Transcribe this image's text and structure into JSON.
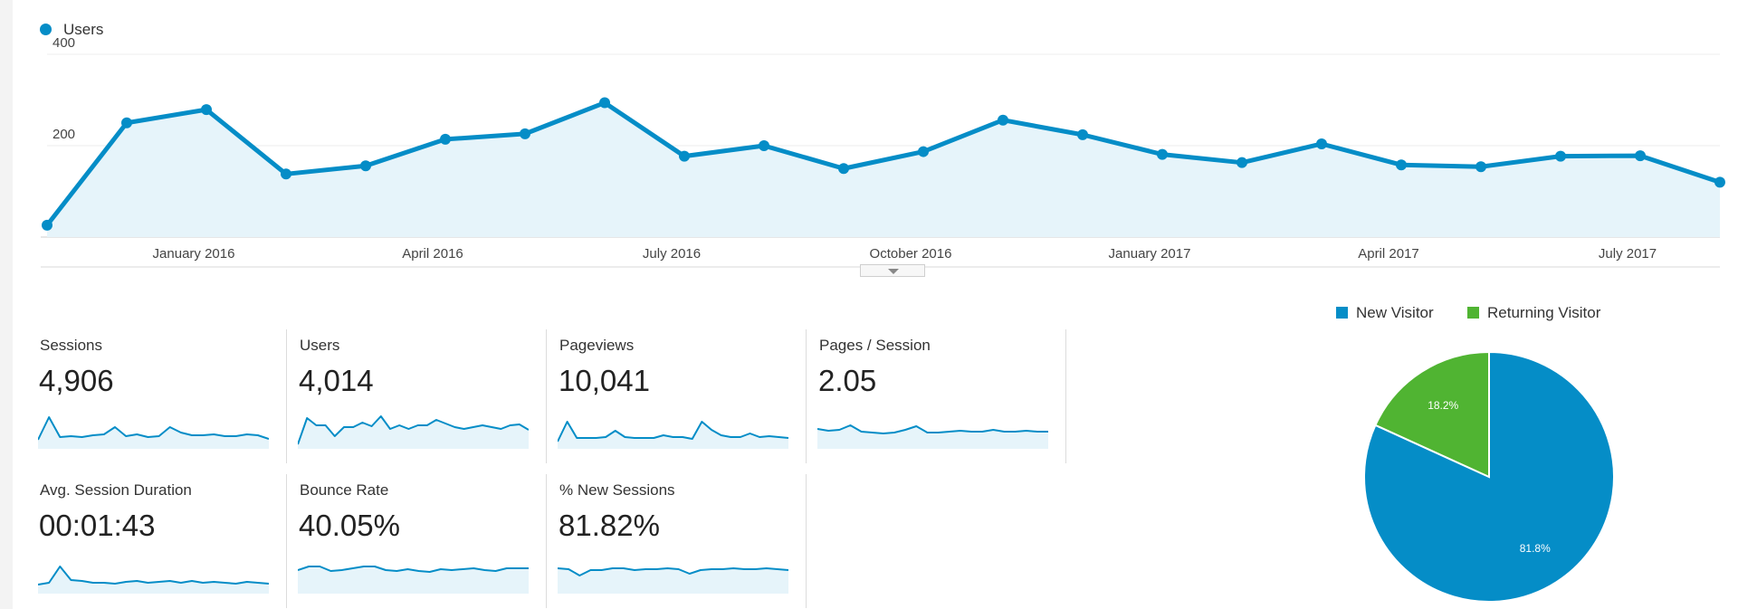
{
  "main_chart": {
    "legend": "Users",
    "color": "#058dc7"
  },
  "chart_data": [
    {
      "type": "area",
      "series": [
        {
          "name": "Users",
          "x": [
            "2015-11",
            "2015-12",
            "2016-01",
            "2016-02",
            "2016-03",
            "2016-04",
            "2016-05",
            "2016-06",
            "2016-07",
            "2016-08",
            "2016-09",
            "2016-10",
            "2016-11",
            "2016-12",
            "2017-01",
            "2017-02",
            "2017-03",
            "2017-04",
            "2017-05",
            "2017-06",
            "2017-07",
            "2017-08"
          ],
          "values": [
            26,
            250,
            279,
            138,
            156,
            214,
            226,
            294,
            177,
            200,
            150,
            187,
            256,
            224,
            181,
            163,
            204,
            158,
            154,
            177,
            178,
            120
          ]
        }
      ],
      "ylim": [
        0,
        400
      ],
      "yticks": [
        "400",
        "200"
      ],
      "xtick_labels": [
        "January 2016",
        "April 2016",
        "July 2016",
        "October 2016",
        "January 2017",
        "April 2017",
        "July 2017"
      ],
      "grid": true
    },
    {
      "type": "pie",
      "slices": [
        {
          "label": "New Visitor",
          "value": 81.8,
          "value_label": "81.8%",
          "color": "#058dc7"
        },
        {
          "label": "Returning Visitor",
          "value": 18.2,
          "value_label": "18.2%",
          "color": "#50b432"
        }
      ],
      "legend": "top"
    }
  ],
  "metrics": [
    {
      "label": "Sessions",
      "value": "4,906",
      "spark": [
        10,
        35,
        13,
        14,
        13,
        15,
        16,
        24,
        14,
        16,
        13,
        14,
        24,
        18,
        15,
        15,
        16,
        14,
        14,
        16,
        15,
        11
      ]
    },
    {
      "label": "Users",
      "value": "4,014",
      "spark": [
        5,
        34,
        26,
        26,
        14,
        24,
        24,
        29,
        25,
        36,
        22,
        26,
        22,
        26,
        26,
        32,
        28,
        24,
        22,
        24,
        26,
        24,
        22,
        26,
        27,
        21
      ]
    },
    {
      "label": "Pageviews",
      "value": "10,041",
      "spark": [
        8,
        30,
        12,
        12,
        12,
        13,
        20,
        13,
        12,
        12,
        12,
        15,
        13,
        13,
        11,
        30,
        21,
        15,
        13,
        13,
        17,
        13,
        14,
        13,
        12
      ]
    },
    {
      "label": "Pages / Session",
      "value": "2.05",
      "spark": [
        22,
        20,
        21,
        26,
        19,
        18,
        17,
        18,
        21,
        25,
        18,
        18,
        19,
        20,
        19,
        19,
        21,
        19,
        19,
        20,
        19,
        19
      ]
    },
    {
      "label": "Avg. Session Duration",
      "value": "00:01:43",
      "spark": [
        10,
        12,
        30,
        15,
        14,
        12,
        12,
        11,
        13,
        14,
        12,
        13,
        14,
        12,
        14,
        12,
        13,
        12,
        11,
        13,
        12,
        11
      ]
    },
    {
      "label": "Bounce Rate",
      "value": "40.05%",
      "spark": [
        26,
        30,
        30,
        25,
        26,
        28,
        30,
        30,
        26,
        25,
        27,
        25,
        24,
        27,
        26,
        27,
        28,
        26,
        25,
        28,
        28,
        28
      ]
    },
    {
      "label": "% New Sessions",
      "value": "81.82%",
      "spark": [
        28,
        27,
        20,
        26,
        26,
        28,
        28,
        26,
        27,
        27,
        28,
        27,
        22,
        26,
        27,
        27,
        28,
        27,
        27,
        28,
        27,
        26
      ]
    }
  ],
  "colors": {
    "accent": "#058dc7",
    "area_fill": "#e6f4fa",
    "returning": "#50b432"
  },
  "icons": {
    "collapse": "chevron-down-icon"
  }
}
